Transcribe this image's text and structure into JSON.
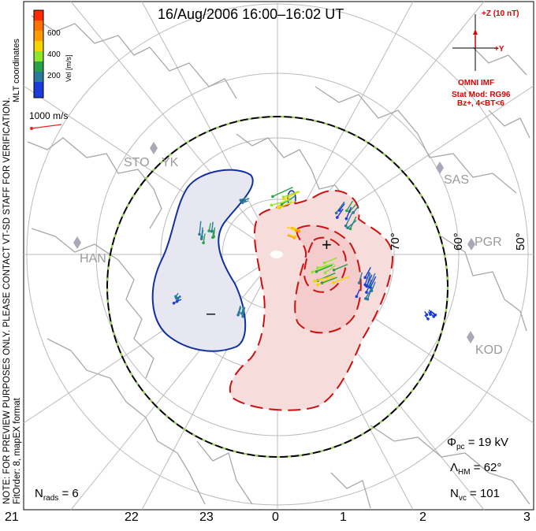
{
  "title": "16/Aug/2006 16:00–16:02 UT",
  "color_scale": {
    "label": "Vel [m/s]",
    "ticks": [
      "600",
      "400",
      "200"
    ],
    "colors": [
      "#ff2a00",
      "#ff9a00",
      "#f6d400",
      "#8ee62a",
      "#2aa04a",
      "#2a7a9a",
      "#1a3cd8",
      "#1010d0"
    ]
  },
  "coord_label": "MLT coordinates",
  "ref_vector": "1000 m/s",
  "notes": {
    "preview": "NOTE: FOR PREVIEW PURPOSES ONLY. PLEASE CONTACT VT-SD STAFF FOR VERIFICATION.",
    "fit": "FitOrder: 8, mapEX format"
  },
  "imf": {
    "z_label": "+Z (10 nT)",
    "y_label": "+Y",
    "source": "OMNI IMF",
    "model": "Stat Mod: RG96",
    "condition": "Bz+, 4<BT<6"
  },
  "stats": {
    "phi_sym": "Φ",
    "phi_sub": "pc",
    "phi_val": "= 19 kV",
    "lambda_sym": "Λ",
    "lambda_sub": "HM",
    "lambda_val": "= 62°",
    "nvc_sym": "N",
    "nvc_sub": "vc",
    "nvc_val": "= 101",
    "nrads_sym": "N",
    "nrads_sub": "rads",
    "nrads_val": "= 6"
  },
  "lat_labels": [
    "70°",
    "60°",
    "50°"
  ],
  "mlt_labels": [
    "21",
    "22",
    "23",
    "0",
    "1",
    "2",
    "3"
  ],
  "sites": [
    "STO",
    "YK",
    "SAS",
    "HAN",
    "PGR",
    "KOD"
  ],
  "cell_signs": [
    "+",
    "–"
  ],
  "colors": {
    "positive": "#cc1111",
    "negative": "#1030a0",
    "grid": "#bbbbbb",
    "coast": "#a8a8a8"
  }
}
